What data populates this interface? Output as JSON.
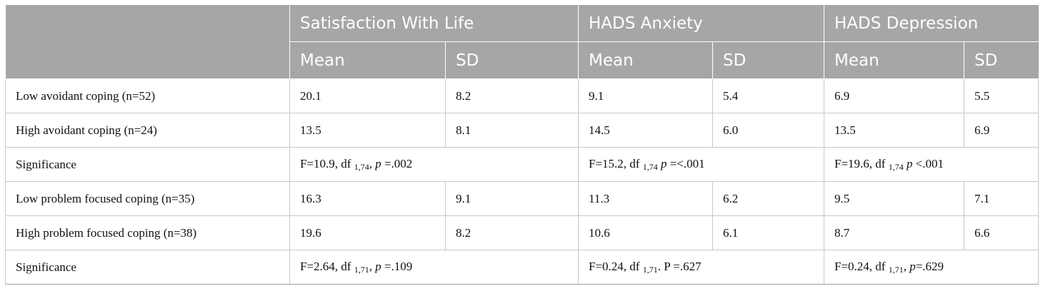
{
  "header": {
    "groups": [
      "Satisfaction With Life",
      "HADS Anxiety",
      "HADS Depression"
    ],
    "mean_label": "Mean",
    "sd_label": "SD"
  },
  "rows": [
    {
      "label": "Low avoidant coping (n=52)",
      "values": [
        "20.1",
        "8.2",
        "9.1",
        "5.4",
        "6.9",
        "5.5"
      ]
    },
    {
      "label": "High avoidant coping (n=24)",
      "values": [
        "13.5",
        "8.1",
        "14.5",
        "6.0",
        "13.5",
        "6.9"
      ]
    },
    {
      "label": "Low problem focused coping (n=35)",
      "values": [
        "16.3",
        "9.1",
        "11.3",
        "6.2",
        "9.5",
        "7.1"
      ]
    },
    {
      "label": "High problem focused coping (n=38)",
      "values": [
        "19.6",
        "8.2",
        "10.6",
        "6.1",
        "8.7",
        "6.6"
      ]
    }
  ],
  "significance": [
    {
      "label": "Significance",
      "cells": [
        {
          "pre": "F=10.9, df ",
          "sub": "1,74",
          "mid": ", ",
          "p": "p",
          "post": " =.002"
        },
        {
          "pre": "F=15.2, df ",
          "sub": "1,74",
          "mid": " ",
          "p": "p",
          "post": " =<.001"
        },
        {
          "pre": "F=19.6, df ",
          "sub": "1,74",
          "mid": " ",
          "p": "p",
          "post": " <.001"
        }
      ]
    },
    {
      "label": "Significance",
      "cells": [
        {
          "pre": "F=2.64, df ",
          "sub": "1,71",
          "mid": ", ",
          "p": "p",
          "post": " =.109"
        },
        {
          "pre": "F=0.24, df ",
          "sub": "1,71",
          "mid": ". P =.627",
          "p": "",
          "post": ""
        },
        {
          "pre": "F=0.24, df ",
          "sub": "1,71",
          "mid": ", ",
          "p": "p",
          "post": "=.629"
        }
      ]
    }
  ]
}
